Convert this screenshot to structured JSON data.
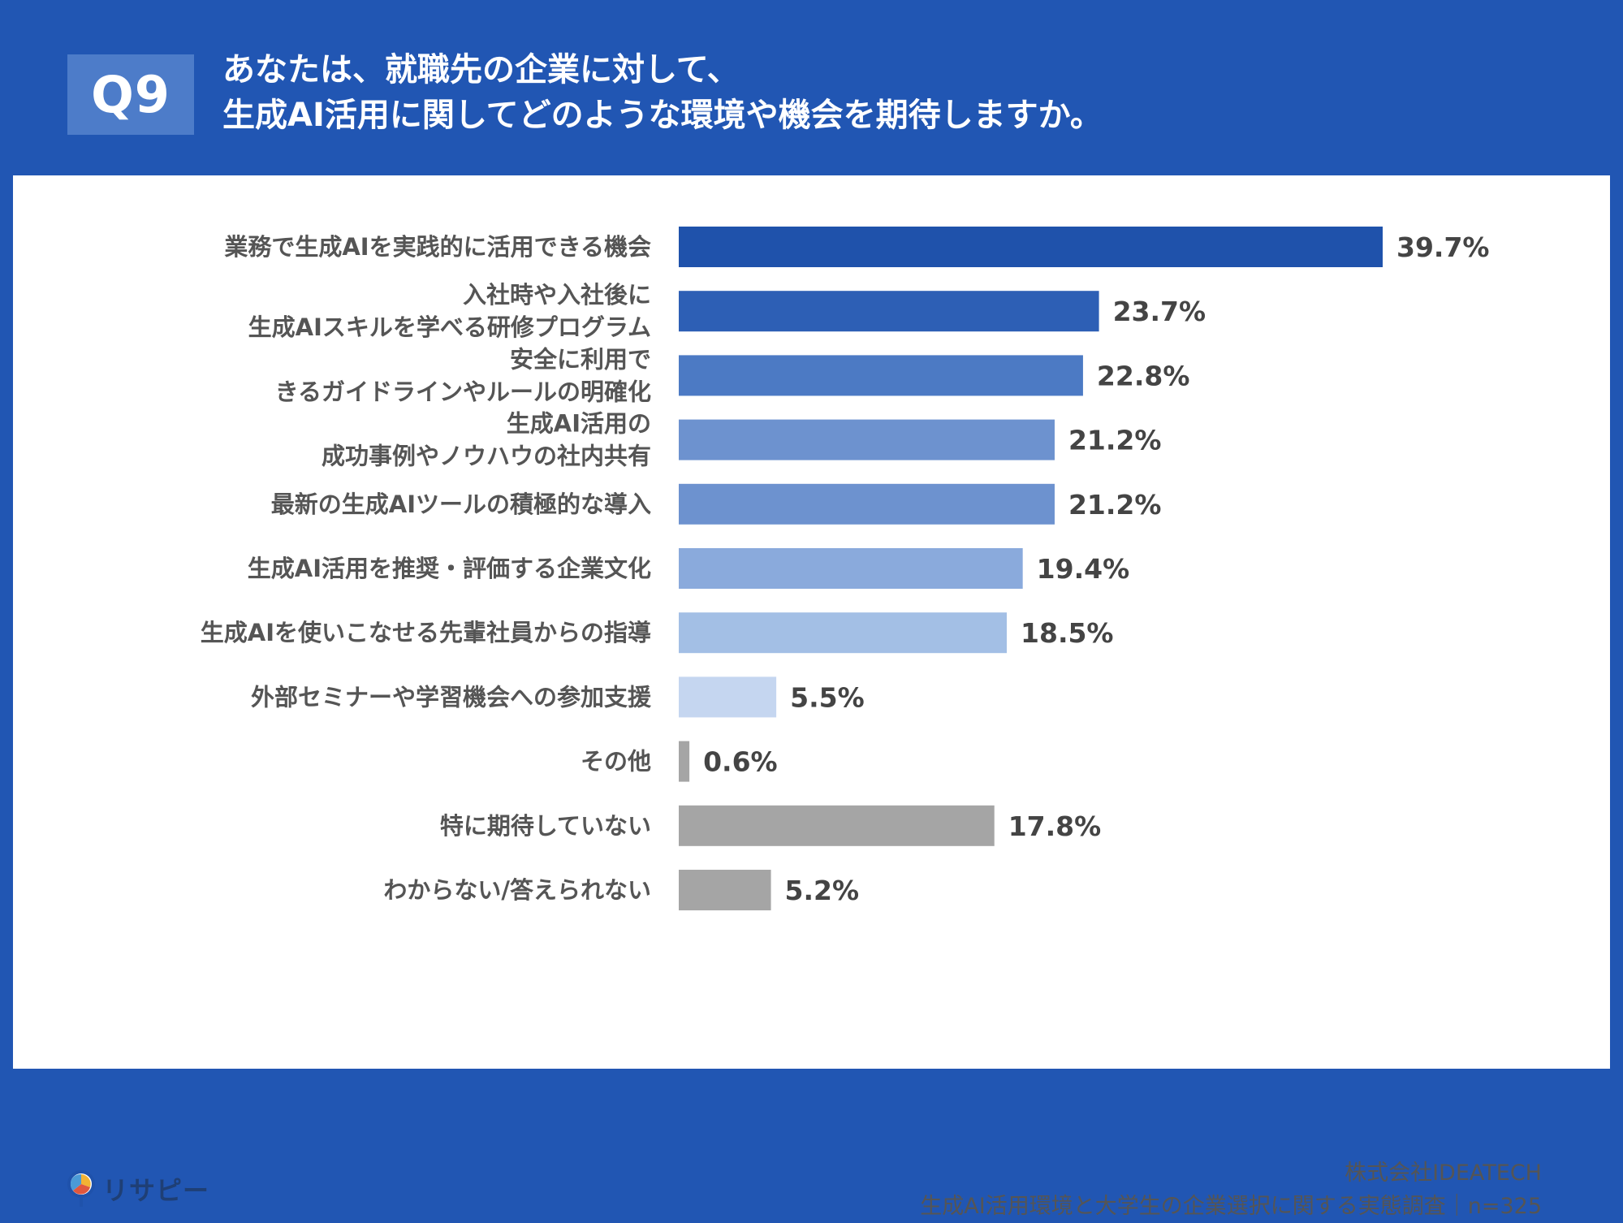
{
  "header": {
    "badge": "Q9",
    "question_line1": "あなたは、就職先の企業に対して、",
    "question_line2": "生成AI活用に関してどのような環境や機会を期待しますか。"
  },
  "chart_data": {
    "type": "bar",
    "orientation": "horizontal",
    "title": "",
    "xlabel": "",
    "ylabel": "",
    "xlim": [
      0,
      39.7
    ],
    "grid": false,
    "legend": "none",
    "categories": [
      [
        "業務で生成AIを実践的に活用できる機会"
      ],
      [
        "入社時や入社後に",
        "生成AIスキルを学べる研修プログラム"
      ],
      [
        "安全に利用で",
        "きるガイドラインやルールの明確化"
      ],
      [
        "生成AI活用の",
        "成功事例やノウハウの社内共有"
      ],
      [
        "最新の生成AIツールの積極的な導入"
      ],
      [
        "生成AI活用を推奨・評価する企業文化"
      ],
      [
        "生成AIを使いこなせる先輩社員からの指導"
      ],
      [
        "外部セミナーや学習機会への参加支援"
      ],
      [
        "その他"
      ],
      [
        "特に期待していない"
      ],
      [
        "わからない/答えられない"
      ]
    ],
    "values": [
      39.7,
      23.7,
      22.8,
      21.2,
      21.2,
      19.4,
      18.5,
      5.5,
      0.6,
      17.8,
      5.2
    ],
    "value_labels": [
      "39.7%",
      "23.7%",
      "22.8%",
      "21.2%",
      "21.2%",
      "19.4%",
      "18.5%",
      "5.5%",
      "0.6%",
      "17.8%",
      "5.2%"
    ],
    "colors": [
      "#1f52ab",
      "#2d5fb5",
      "#4c7ac4",
      "#6d92cf",
      "#6d92cf",
      "#8aaadc",
      "#a3bfe5",
      "#c5d6f0",
      "#a5a5a5",
      "#a5a5a5",
      "#a5a5a5"
    ]
  },
  "footer": {
    "logo_text": "リサピー",
    "company": "株式会社IDEATECH",
    "survey": "生成AI活用環境と大学生の企業選択に関する実態調査｜n=325"
  }
}
